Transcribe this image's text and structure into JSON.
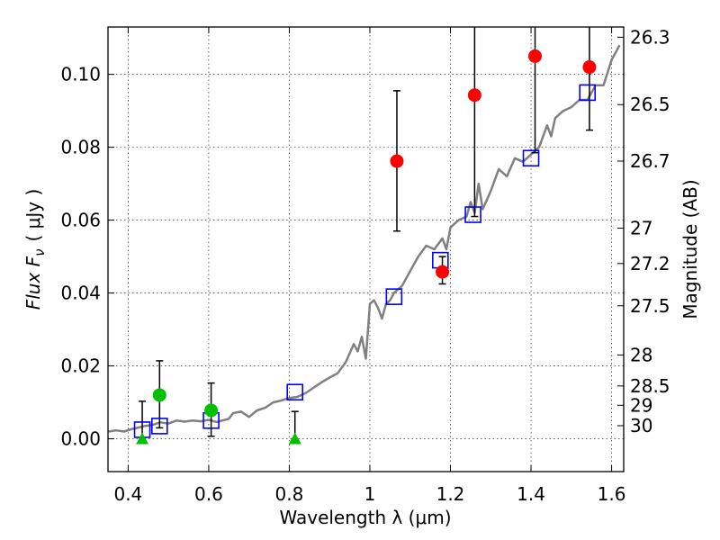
{
  "chart_data": {
    "type": "scatter",
    "xlabel": "Wavelength  λ (μm)",
    "ylabel_left": "Flux  F",
    "ylabel_left_sub": "ν",
    "ylabel_left_units": "( μJy )",
    "ylabel_right": "Magnitude (AB)",
    "xlim": [
      0.35,
      1.63
    ],
    "ylim": [
      -0.009,
      0.113
    ],
    "x_ticks": [
      0.4,
      0.6,
      0.8,
      1.0,
      1.2,
      1.4,
      1.6
    ],
    "x_tick_labels": [
      "0.4",
      "0.6",
      "0.8",
      "1",
      "1.2",
      "1.4",
      "1.6"
    ],
    "y_ticks": [
      0.0,
      0.02,
      0.04,
      0.06,
      0.08,
      0.1
    ],
    "y_tick_labels": [
      "0.00",
      "0.02",
      "0.04",
      "0.06",
      "0.08",
      "0.10"
    ],
    "right_ticks": [
      {
        "label": "26.3",
        "flux": 0.1102
      },
      {
        "label": "26.5",
        "flux": 0.0917
      },
      {
        "label": "26.7",
        "flux": 0.0762
      },
      {
        "label": "27",
        "flux": 0.0578
      },
      {
        "label": "27.2",
        "flux": 0.0481
      },
      {
        "label": "27.5",
        "flux": 0.0365
      },
      {
        "label": "28",
        "flux": 0.023
      },
      {
        "label": "28.5",
        "flux": 0.0145
      },
      {
        "label": "29",
        "flux": 0.0092
      },
      {
        "label": "30",
        "flux": 0.0036
      }
    ],
    "grid": true,
    "series": [
      {
        "name": "model_spectrum",
        "kind": "line",
        "color": "#808080",
        "x": [
          0.35,
          0.37,
          0.39,
          0.41,
          0.43,
          0.44,
          0.46,
          0.48,
          0.5,
          0.52,
          0.54,
          0.56,
          0.58,
          0.6,
          0.62,
          0.64,
          0.65,
          0.66,
          0.68,
          0.7,
          0.72,
          0.74,
          0.76,
          0.78,
          0.8,
          0.82,
          0.84,
          0.86,
          0.88,
          0.9,
          0.92,
          0.94,
          0.96,
          0.97,
          0.98,
          0.99,
          1.0,
          1.01,
          1.02,
          1.03,
          1.04,
          1.05,
          1.06,
          1.08,
          1.1,
          1.12,
          1.14,
          1.16,
          1.18,
          1.19,
          1.2,
          1.22,
          1.24,
          1.25,
          1.26,
          1.27,
          1.28,
          1.3,
          1.32,
          1.34,
          1.36,
          1.38,
          1.4,
          1.42,
          1.44,
          1.45,
          1.46,
          1.48,
          1.5,
          1.52,
          1.54,
          1.56,
          1.58,
          1.6,
          1.62
        ],
        "y": [
          0.002,
          0.0023,
          0.002,
          0.0027,
          0.0032,
          0.0035,
          0.0038,
          0.0045,
          0.0042,
          0.005,
          0.0047,
          0.005,
          0.0048,
          0.0052,
          0.0046,
          0.0052,
          0.0055,
          0.007,
          0.0075,
          0.006,
          0.0078,
          0.0085,
          0.01,
          0.0105,
          0.0112,
          0.0115,
          0.0125,
          0.014,
          0.0155,
          0.0168,
          0.018,
          0.021,
          0.026,
          0.024,
          0.028,
          0.022,
          0.037,
          0.038,
          0.036,
          0.033,
          0.037,
          0.038,
          0.04,
          0.042,
          0.046,
          0.05,
          0.053,
          0.052,
          0.055,
          0.052,
          0.058,
          0.06,
          0.061,
          0.065,
          0.062,
          0.07,
          0.063,
          0.068,
          0.074,
          0.072,
          0.077,
          0.076,
          0.078,
          0.08,
          0.086,
          0.083,
          0.088,
          0.09,
          0.091,
          0.093,
          0.093,
          0.097,
          0.097,
          0.104,
          0.108
        ]
      },
      {
        "name": "model_photometry",
        "kind": "scatter",
        "marker": "open-square",
        "color": "#0000ff",
        "x": [
          0.435,
          0.478,
          0.606,
          0.814,
          1.06,
          1.175,
          1.256,
          1.4,
          1.54
        ],
        "y": [
          0.0025,
          0.0035,
          0.005,
          0.0128,
          0.039,
          0.049,
          0.0615,
          0.077,
          0.095
        ]
      },
      {
        "name": "detections_optical",
        "kind": "scatter",
        "marker": "circle",
        "color": "#00c000",
        "x": [
          0.478,
          0.606
        ],
        "y": [
          0.012,
          0.0078
        ],
        "err_low": [
          0.009,
          0.0071
        ],
        "err_high": [
          0.0094,
          0.0075
        ]
      },
      {
        "name": "upper_limits",
        "kind": "scatter",
        "marker": "triangle",
        "color": "#00c000",
        "x": [
          0.435,
          0.814
        ],
        "y": [
          0.0,
          0.0
        ],
        "err_low": [
          0.0,
          0.0
        ],
        "err_high": [
          0.0103,
          0.0075
        ]
      },
      {
        "name": "detections_nir",
        "kind": "scatter",
        "marker": "circle",
        "color": "#ff0000",
        "x": [
          1.067,
          1.18,
          1.26,
          1.41,
          1.545
        ],
        "y": [
          0.0762,
          0.0458,
          0.0943,
          0.105,
          0.102
        ],
        "err_low": [
          0.0192,
          0.0033,
          0.0333,
          0.0265,
          0.0173
        ],
        "err_high": [
          0.0193,
          0.0042,
          0.02,
          0.02,
          0.02
        ]
      }
    ]
  }
}
